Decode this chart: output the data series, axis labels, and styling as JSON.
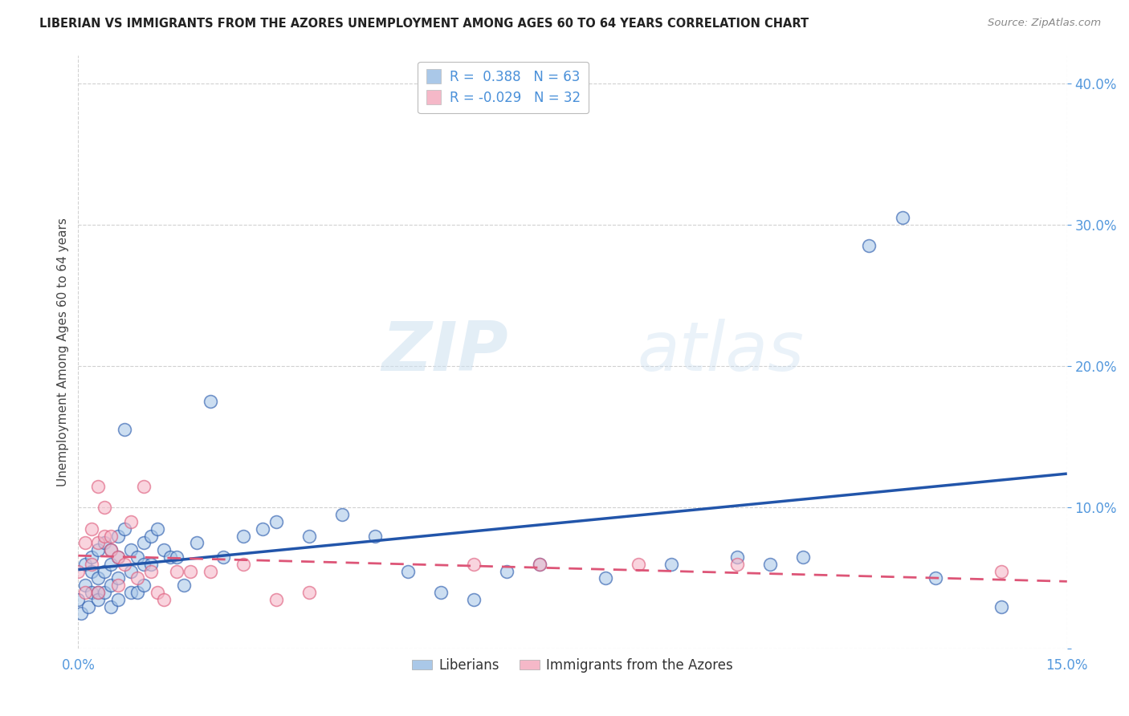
{
  "title": "LIBERIAN VS IMMIGRANTS FROM THE AZORES UNEMPLOYMENT AMONG AGES 60 TO 64 YEARS CORRELATION CHART",
  "source": "Source: ZipAtlas.com",
  "ylabel": "Unemployment Among Ages 60 to 64 years",
  "xlim": [
    0.0,
    0.15
  ],
  "ylim": [
    0.0,
    0.42
  ],
  "ytick_positions": [
    0.0,
    0.1,
    0.2,
    0.3,
    0.4
  ],
  "ytick_labels": [
    "",
    "10.0%",
    "20.0%",
    "30.0%",
    "40.0%"
  ],
  "xtick_positions": [
    0.0,
    0.15
  ],
  "xtick_labels": [
    "0.0%",
    "15.0%"
  ],
  "grid_color": "#cccccc",
  "background_color": "#ffffff",
  "watermark_zip": "ZIP",
  "watermark_atlas": "atlas",
  "liberian_color": "#aac8e8",
  "azores_color": "#f5b8c8",
  "liberian_line_color": "#2255aa",
  "azores_line_color": "#dd5577",
  "R_liberian": 0.388,
  "N_liberian": 63,
  "R_azores": -0.029,
  "N_azores": 32,
  "liberian_x": [
    0.0,
    0.0005,
    0.001,
    0.001,
    0.0015,
    0.002,
    0.002,
    0.002,
    0.003,
    0.003,
    0.003,
    0.003,
    0.004,
    0.004,
    0.004,
    0.005,
    0.005,
    0.005,
    0.005,
    0.006,
    0.006,
    0.006,
    0.006,
    0.007,
    0.007,
    0.008,
    0.008,
    0.008,
    0.009,
    0.009,
    0.01,
    0.01,
    0.01,
    0.011,
    0.011,
    0.012,
    0.013,
    0.014,
    0.015,
    0.016,
    0.018,
    0.02,
    0.022,
    0.025,
    0.028,
    0.03,
    0.035,
    0.04,
    0.045,
    0.05,
    0.055,
    0.06,
    0.065,
    0.07,
    0.08,
    0.09,
    0.1,
    0.105,
    0.11,
    0.12,
    0.125,
    0.13,
    0.14
  ],
  "liberian_y": [
    0.035,
    0.025,
    0.06,
    0.045,
    0.03,
    0.055,
    0.04,
    0.065,
    0.07,
    0.05,
    0.04,
    0.035,
    0.075,
    0.055,
    0.04,
    0.07,
    0.06,
    0.045,
    0.03,
    0.08,
    0.065,
    0.05,
    0.035,
    0.155,
    0.085,
    0.07,
    0.055,
    0.04,
    0.065,
    0.04,
    0.075,
    0.06,
    0.045,
    0.08,
    0.06,
    0.085,
    0.07,
    0.065,
    0.065,
    0.045,
    0.075,
    0.175,
    0.065,
    0.08,
    0.085,
    0.09,
    0.08,
    0.095,
    0.08,
    0.055,
    0.04,
    0.035,
    0.055,
    0.06,
    0.05,
    0.06,
    0.065,
    0.06,
    0.065,
    0.285,
    0.305,
    0.05,
    0.03
  ],
  "azores_x": [
    0.0,
    0.001,
    0.001,
    0.002,
    0.002,
    0.003,
    0.003,
    0.003,
    0.004,
    0.004,
    0.005,
    0.005,
    0.006,
    0.006,
    0.007,
    0.008,
    0.009,
    0.01,
    0.011,
    0.012,
    0.013,
    0.015,
    0.017,
    0.02,
    0.025,
    0.03,
    0.035,
    0.06,
    0.07,
    0.085,
    0.1,
    0.14
  ],
  "azores_y": [
    0.055,
    0.04,
    0.075,
    0.085,
    0.06,
    0.115,
    0.075,
    0.04,
    0.08,
    0.1,
    0.08,
    0.07,
    0.065,
    0.045,
    0.06,
    0.09,
    0.05,
    0.115,
    0.055,
    0.04,
    0.035,
    0.055,
    0.055,
    0.055,
    0.06,
    0.035,
    0.04,
    0.06,
    0.06,
    0.06,
    0.06,
    0.055
  ]
}
